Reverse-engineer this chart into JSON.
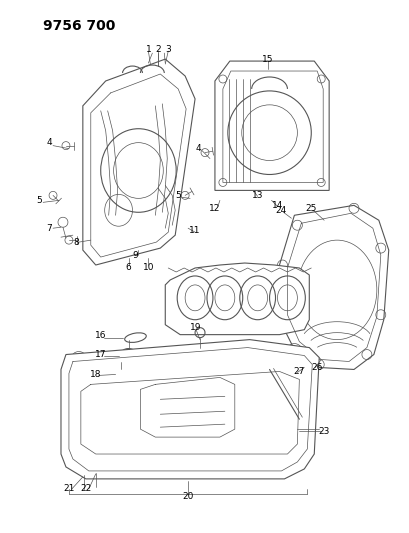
{
  "title": "9756 700",
  "bg_color": "#ffffff",
  "line_color": "#555555",
  "label_color": "#000000",
  "title_fontsize": 10,
  "label_fontsize": 6.5,
  "fig_width": 4.1,
  "fig_height": 5.33,
  "dpi": 100
}
